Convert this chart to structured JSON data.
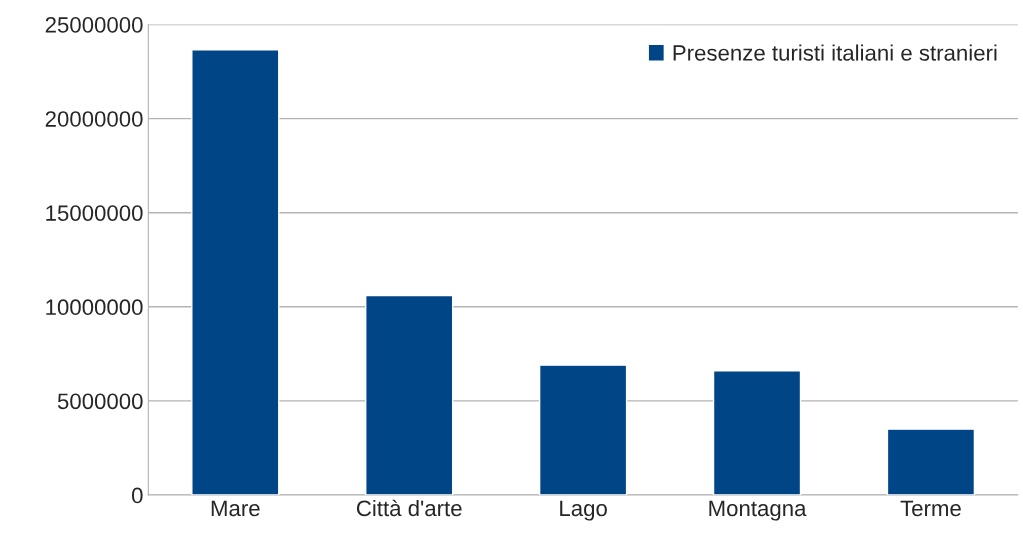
{
  "chart_data": {
    "type": "bar",
    "categories": [
      "Mare",
      "Città d'arte",
      "Lago",
      "Montagna",
      "Terme"
    ],
    "series": [
      {
        "name": "Presenze turisti italiani e stranieri",
        "color": "#004586",
        "values": [
          23650000,
          10600000,
          6900000,
          6600000,
          3500000
        ]
      }
    ],
    "ylim": [
      0,
      25000000
    ],
    "yticks": [
      0,
      5000000,
      10000000,
      15000000,
      20000000,
      25000000
    ],
    "grid": "y",
    "legend": "top right"
  }
}
